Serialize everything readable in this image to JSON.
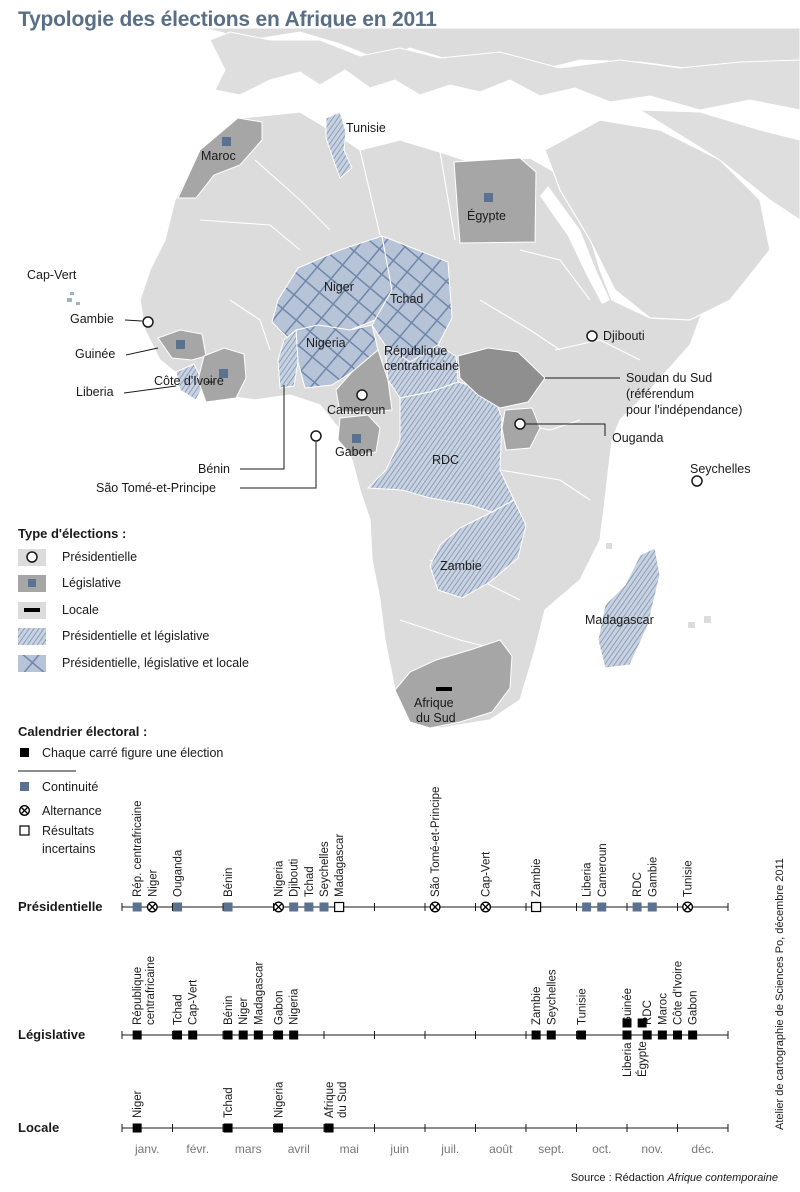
{
  "title": "Typologie des élections en Afrique en 2011",
  "colors": {
    "land": "#dcdcdc",
    "legislative": "#a6a6a6",
    "accent": "#5a7190",
    "hatch": "#8ea1bc",
    "text": "#1a1a1a"
  },
  "map_labels": {
    "tunisie": "Tunisie",
    "maroc": "Maroc",
    "egypte": "Égypte",
    "cap_vert": "Cap-Vert",
    "niger": "Niger",
    "tchad": "Tchad",
    "gambie": "Gambie",
    "djibouti": "Djibouti",
    "guinee": "Guinée",
    "nigeria": "Nigeria",
    "rca_1": "République",
    "rca_2": "centrafricaine",
    "liberia": "Liberia",
    "cote_ivoire": "Côte d'Ivoire",
    "soudan_1": "Soudan du Sud",
    "soudan_2": "(référendum",
    "soudan_3": "pour l'indépendance)",
    "cameroun": "Cameroun",
    "ouganda": "Ouganda",
    "gabon": "Gabon",
    "rdc": "RDC",
    "benin": "Bénin",
    "sao_tome": "São Tomé-et-Principe",
    "seychelles": "Seychelles",
    "zambie": "Zambie",
    "madagascar": "Madagascar",
    "afrique_sud_1": "Afrique",
    "afrique_sud_2": "du Sud"
  },
  "legend_types": {
    "title": "Type d'élections :",
    "items": [
      "Présidentielle",
      "Législative",
      "Locale",
      "Présidentielle et législative",
      "Présidentielle, législative et locale"
    ]
  },
  "legend_calendar": {
    "title": "Calendrier électoral :",
    "square": "Chaque carré figure une élection",
    "continuite": "Continuité",
    "alternance": "Alternance",
    "resultats_1": "Résultats",
    "resultats_2": "incertains"
  },
  "timeline": {
    "months": [
      "janv.",
      "févr.",
      "mars",
      "avril",
      "mai",
      "juin",
      "juil.",
      "août",
      "sept.",
      "oct.",
      "nov.",
      "déc."
    ],
    "rows": [
      {
        "label": "Présidentielle",
        "events": [
          {
            "name": "Rép. centrafricaine",
            "month": 0.3,
            "status": "continuite"
          },
          {
            "name": "Niger",
            "month": 0.6,
            "status": "alternance"
          },
          {
            "name": "Ouganda",
            "month": 1.1,
            "status": "continuite"
          },
          {
            "name": "Bénin",
            "month": 2.1,
            "status": "continuite"
          },
          {
            "name": "Nigeria",
            "month": 3.1,
            "status": "alternance"
          },
          {
            "name": "Djibouti",
            "month": 3.4,
            "status": "continuite"
          },
          {
            "name": "Tchad",
            "month": 3.7,
            "status": "continuite"
          },
          {
            "name": "Seychelles",
            "month": 4.0,
            "status": "continuite"
          },
          {
            "name": "Madagascar",
            "month": 4.3,
            "status": "incertain"
          },
          {
            "name": "São Tomé-et-Principe",
            "month": 6.2,
            "status": "alternance"
          },
          {
            "name": "Cap-Vert",
            "month": 7.2,
            "status": "alternance"
          },
          {
            "name": "Zambie",
            "month": 8.2,
            "status": "incertain"
          },
          {
            "name": "Liberia",
            "month": 9.2,
            "status": "continuite"
          },
          {
            "name": "Cameroun",
            "month": 9.5,
            "status": "continuite"
          },
          {
            "name": "RDC",
            "month": 10.2,
            "status": "continuite"
          },
          {
            "name": "Gambie",
            "month": 10.5,
            "status": "continuite"
          },
          {
            "name": "Tunisie",
            "month": 11.2,
            "status": "alternance"
          }
        ]
      },
      {
        "label": "Législative",
        "events": [
          {
            "name": "République centrafricaine",
            "month": 0.3,
            "status": "election"
          },
          {
            "name": "Tchad",
            "month": 1.1,
            "status": "election"
          },
          {
            "name": "Cap-Vert",
            "month": 1.4,
            "status": "election"
          },
          {
            "name": "Bénin",
            "month": 2.1,
            "status": "election"
          },
          {
            "name": "Niger",
            "month": 2.4,
            "status": "election"
          },
          {
            "name": "Madagascar",
            "month": 2.7,
            "status": "election"
          },
          {
            "name": "Gabon",
            "month": 3.1,
            "status": "election"
          },
          {
            "name": "Nigeria",
            "month": 3.4,
            "status": "election"
          },
          {
            "name": "Zambie",
            "month": 8.2,
            "status": "election"
          },
          {
            "name": "Seychelles",
            "month": 8.5,
            "status": "election"
          },
          {
            "name": "Tunisie",
            "month": 9.1,
            "status": "election"
          },
          {
            "name": "Guinée",
            "month": 10.0,
            "status": "election"
          },
          {
            "name": "RDC",
            "month": 10.4,
            "status": "election"
          },
          {
            "name": "Maroc",
            "month": 10.7,
            "status": "election"
          },
          {
            "name": "Côte d'Ivoire",
            "month": 11.0,
            "status": "election"
          },
          {
            "name": "Gabon",
            "month": 11.3,
            "status": "election"
          }
        ],
        "below": [
          {
            "name": "Liberia",
            "month": 10.0
          },
          {
            "name": "Égypte",
            "month": 10.3
          }
        ]
      },
      {
        "label": "Locale",
        "events": [
          {
            "name": "Niger",
            "month": 0.3,
            "status": "election"
          },
          {
            "name": "Tchad",
            "month": 2.1,
            "status": "election"
          },
          {
            "name": "Nigeria",
            "month": 3.1,
            "status": "election"
          },
          {
            "name": "Afrique du Sud",
            "month": 4.1,
            "status": "election"
          }
        ]
      }
    ]
  },
  "source_prefix": "Source : Rédaction ",
  "source_italic": "Afrique contemporaine",
  "credit": "Atelier de cartographie de Sciences Po, décembre 2011"
}
